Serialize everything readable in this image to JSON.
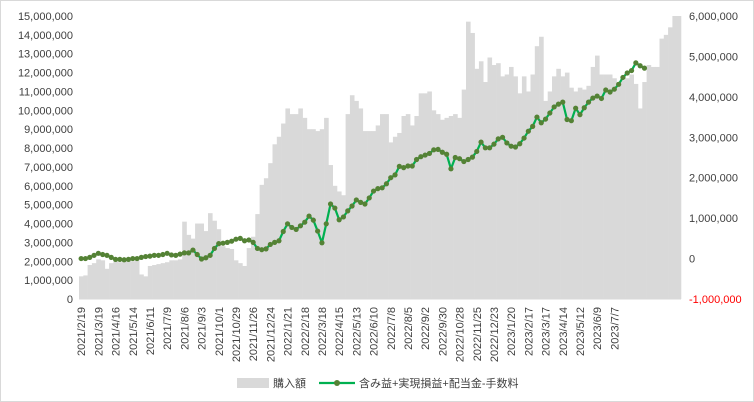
{
  "chart_data": {
    "type": "bar+line",
    "title": "",
    "x_start": "2021/2/19",
    "x_step_days": 7,
    "x_tick_labels": [
      "2021/2/19",
      "2021/3/19",
      "2021/4/16",
      "2021/5/14",
      "2021/6/11",
      "2021/7/9",
      "2021/8/6",
      "2021/9/3",
      "2021/10/1",
      "2021/10/29",
      "2021/11/26",
      "2021/12/24",
      "2022/1/21",
      "2022/2/18",
      "2022/3/18",
      "2022/4/15",
      "2022/5/13",
      "2022/6/10",
      "2022/7/8",
      "2022/8/5",
      "2022/9/2",
      "2022/9/30",
      "2022/10/28",
      "2022/11/25",
      "2022/12/23",
      "2023/1/20",
      "2023/2/17",
      "2023/3/17",
      "2023/4/14",
      "2023/5/12",
      "2023/6/9",
      "2023/7/7"
    ],
    "y_left": {
      "min": 0,
      "max": 15000000,
      "step": 1000000,
      "tick_labels": [
        "0",
        "1,000,000",
        "2,000,000",
        "3,000,000",
        "4,000,000",
        "5,000,000",
        "6,000,000",
        "7,000,000",
        "8,000,000",
        "9,000,000",
        "10,000,000",
        "11,000,000",
        "12,000,000",
        "13,000,000",
        "14,000,000",
        "15,000,000"
      ]
    },
    "y_right": {
      "min": -1000000,
      "max": 6000000,
      "step": 1000000,
      "tick_labels": [
        "-1,000,000",
        "0",
        "1,000,000",
        "2,000,000",
        "3,000,000",
        "4,000,000",
        "5,000,000",
        "6,000,000"
      ]
    },
    "series": [
      {
        "name": "購入額",
        "type": "bar",
        "axis": "left",
        "color": "#d9d9d9",
        "values": [
          1200000,
          1250000,
          1800000,
          1900000,
          2100000,
          2050000,
          1600000,
          1900000,
          2000000,
          1950000,
          2050000,
          2050000,
          2000000,
          2050000,
          1300000,
          1200000,
          1750000,
          1800000,
          1850000,
          1900000,
          1950000,
          2050000,
          2050000,
          2100000,
          4100000,
          3400000,
          3200000,
          4000000,
          4000000,
          3600000,
          4550000,
          4150000,
          3700000,
          2800000,
          2700000,
          2650000,
          2050000,
          1900000,
          1750000,
          2700000,
          3300000,
          4500000,
          6050000,
          6400000,
          7200000,
          8200000,
          8600000,
          9300000,
          10100000,
          9800000,
          9800000,
          10100000,
          9600000,
          9000000,
          9000000,
          8900000,
          9000000,
          9600000,
          7100000,
          6000000,
          5700000,
          5500000,
          9800000,
          10800000,
          10500000,
          10100000,
          8900000,
          8900000,
          8900000,
          9200000,
          9800000,
          9800000,
          8300000,
          8600000,
          8800000,
          9700000,
          9800000,
          9200000,
          9700000,
          10900000,
          10900000,
          11000000,
          10000000,
          9800000,
          9500000,
          9600000,
          9700000,
          9800000,
          9600000,
          11100000,
          14700000,
          14100000,
          12200000,
          12600000,
          11500000,
          12800000,
          12400000,
          12500000,
          11800000,
          11900000,
          12300000,
          11800000,
          10900000,
          11800000,
          11000000,
          11900000,
          13400000,
          13900000,
          10500000,
          11000000,
          11800000,
          12200000,
          11800000,
          12000000,
          11200000,
          11000000,
          11200000,
          11100000,
          11300000,
          12300000,
          12900000,
          11900000,
          11900000,
          11900000,
          11700000,
          11500000,
          11600000,
          11700000,
          11900000,
          11400000,
          10100000,
          11500000,
          12400000,
          12300000,
          12300000,
          13800000,
          14000000,
          14400000,
          15000000,
          15000000
        ]
      },
      {
        "name": "含み益+実現損益+配当金-手数料",
        "type": "line",
        "axis": "right",
        "color": "#00b050",
        "marker_color": "#548235",
        "values": [
          0,
          0,
          30000,
          80000,
          130000,
          100000,
          80000,
          30000,
          -20000,
          -20000,
          -30000,
          -20000,
          0,
          0,
          30000,
          50000,
          60000,
          80000,
          80000,
          100000,
          130000,
          90000,
          80000,
          110000,
          140000,
          140000,
          210000,
          100000,
          -10000,
          20000,
          80000,
          250000,
          370000,
          380000,
          400000,
          430000,
          480000,
          500000,
          440000,
          460000,
          400000,
          250000,
          220000,
          240000,
          350000,
          400000,
          440000,
          670000,
          860000,
          770000,
          720000,
          810000,
          900000,
          1050000,
          950000,
          680000,
          390000,
          860000,
          1350000,
          1250000,
          960000,
          1030000,
          1180000,
          1300000,
          1450000,
          1390000,
          1350000,
          1500000,
          1670000,
          1730000,
          1750000,
          1850000,
          2000000,
          2070000,
          2280000,
          2250000,
          2290000,
          2290000,
          2450000,
          2520000,
          2560000,
          2600000,
          2690000,
          2700000,
          2630000,
          2580000,
          2220000,
          2500000,
          2470000,
          2400000,
          2450000,
          2510000,
          2650000,
          2880000,
          2740000,
          2740000,
          2830000,
          2960000,
          3000000,
          2860000,
          2780000,
          2760000,
          2840000,
          2980000,
          3150000,
          3270000,
          3500000,
          3360000,
          3450000,
          3600000,
          3750000,
          3820000,
          3870000,
          3440000,
          3410000,
          3720000,
          3560000,
          3730000,
          3870000,
          3970000,
          4020000,
          3960000,
          4170000,
          4120000,
          4190000,
          4310000,
          4480000,
          4590000,
          4650000,
          4840000,
          4770000,
          4710000
        ]
      }
    ],
    "legend": {
      "position": "bottom"
    },
    "grid": false
  }
}
